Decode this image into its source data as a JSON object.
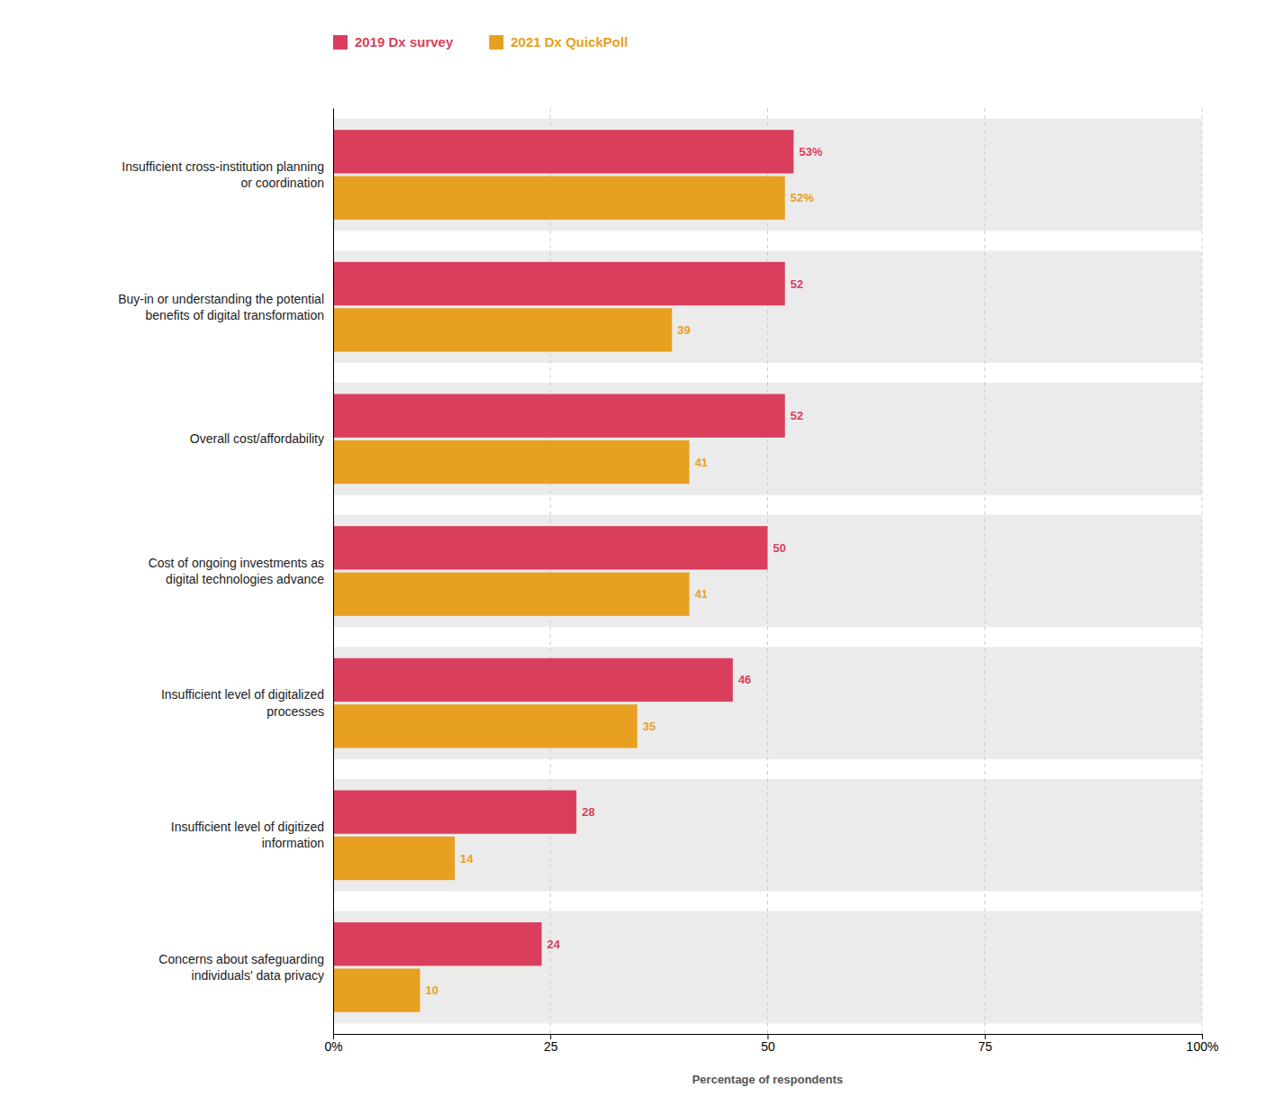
{
  "chart_data": {
    "type": "bar",
    "orientation": "horizontal",
    "categories": [
      "Insufficient cross-institution planning\nor coordination",
      "Buy-in or understanding the potential\nbenefits of digital transformation",
      "Overall cost/affordability",
      "Cost of ongoing investments as\ndigital technologies advance",
      "Insufficient level of digitalized\nprocesses",
      "Insufficient level of digitized\ninformation",
      "Concerns about safeguarding\nindividuals' data privacy"
    ],
    "series": [
      {
        "name": "2019 Dx survey",
        "color": "#D93F5C",
        "values": [
          53,
          52,
          52,
          50,
          46,
          28,
          24
        ],
        "value_labels": [
          "53%",
          "52",
          "52",
          "50",
          "46",
          "28",
          "24"
        ]
      },
      {
        "name": "2021 Dx QuickPoll",
        "color": "#E8A020",
        "values": [
          52,
          39,
          41,
          41,
          35,
          14,
          10
        ],
        "value_labels": [
          "52%",
          "39",
          "41",
          "41",
          "35",
          "14",
          "10"
        ]
      }
    ],
    "xlabel": "Percentage of respondents",
    "xlim": [
      0,
      100
    ],
    "xticks": [
      {
        "value": 0,
        "label": "0%"
      },
      25,
      50,
      75,
      {
        "value": 100,
        "label": "100%"
      }
    ],
    "grid": true,
    "data_labels": true,
    "legend": "top"
  }
}
